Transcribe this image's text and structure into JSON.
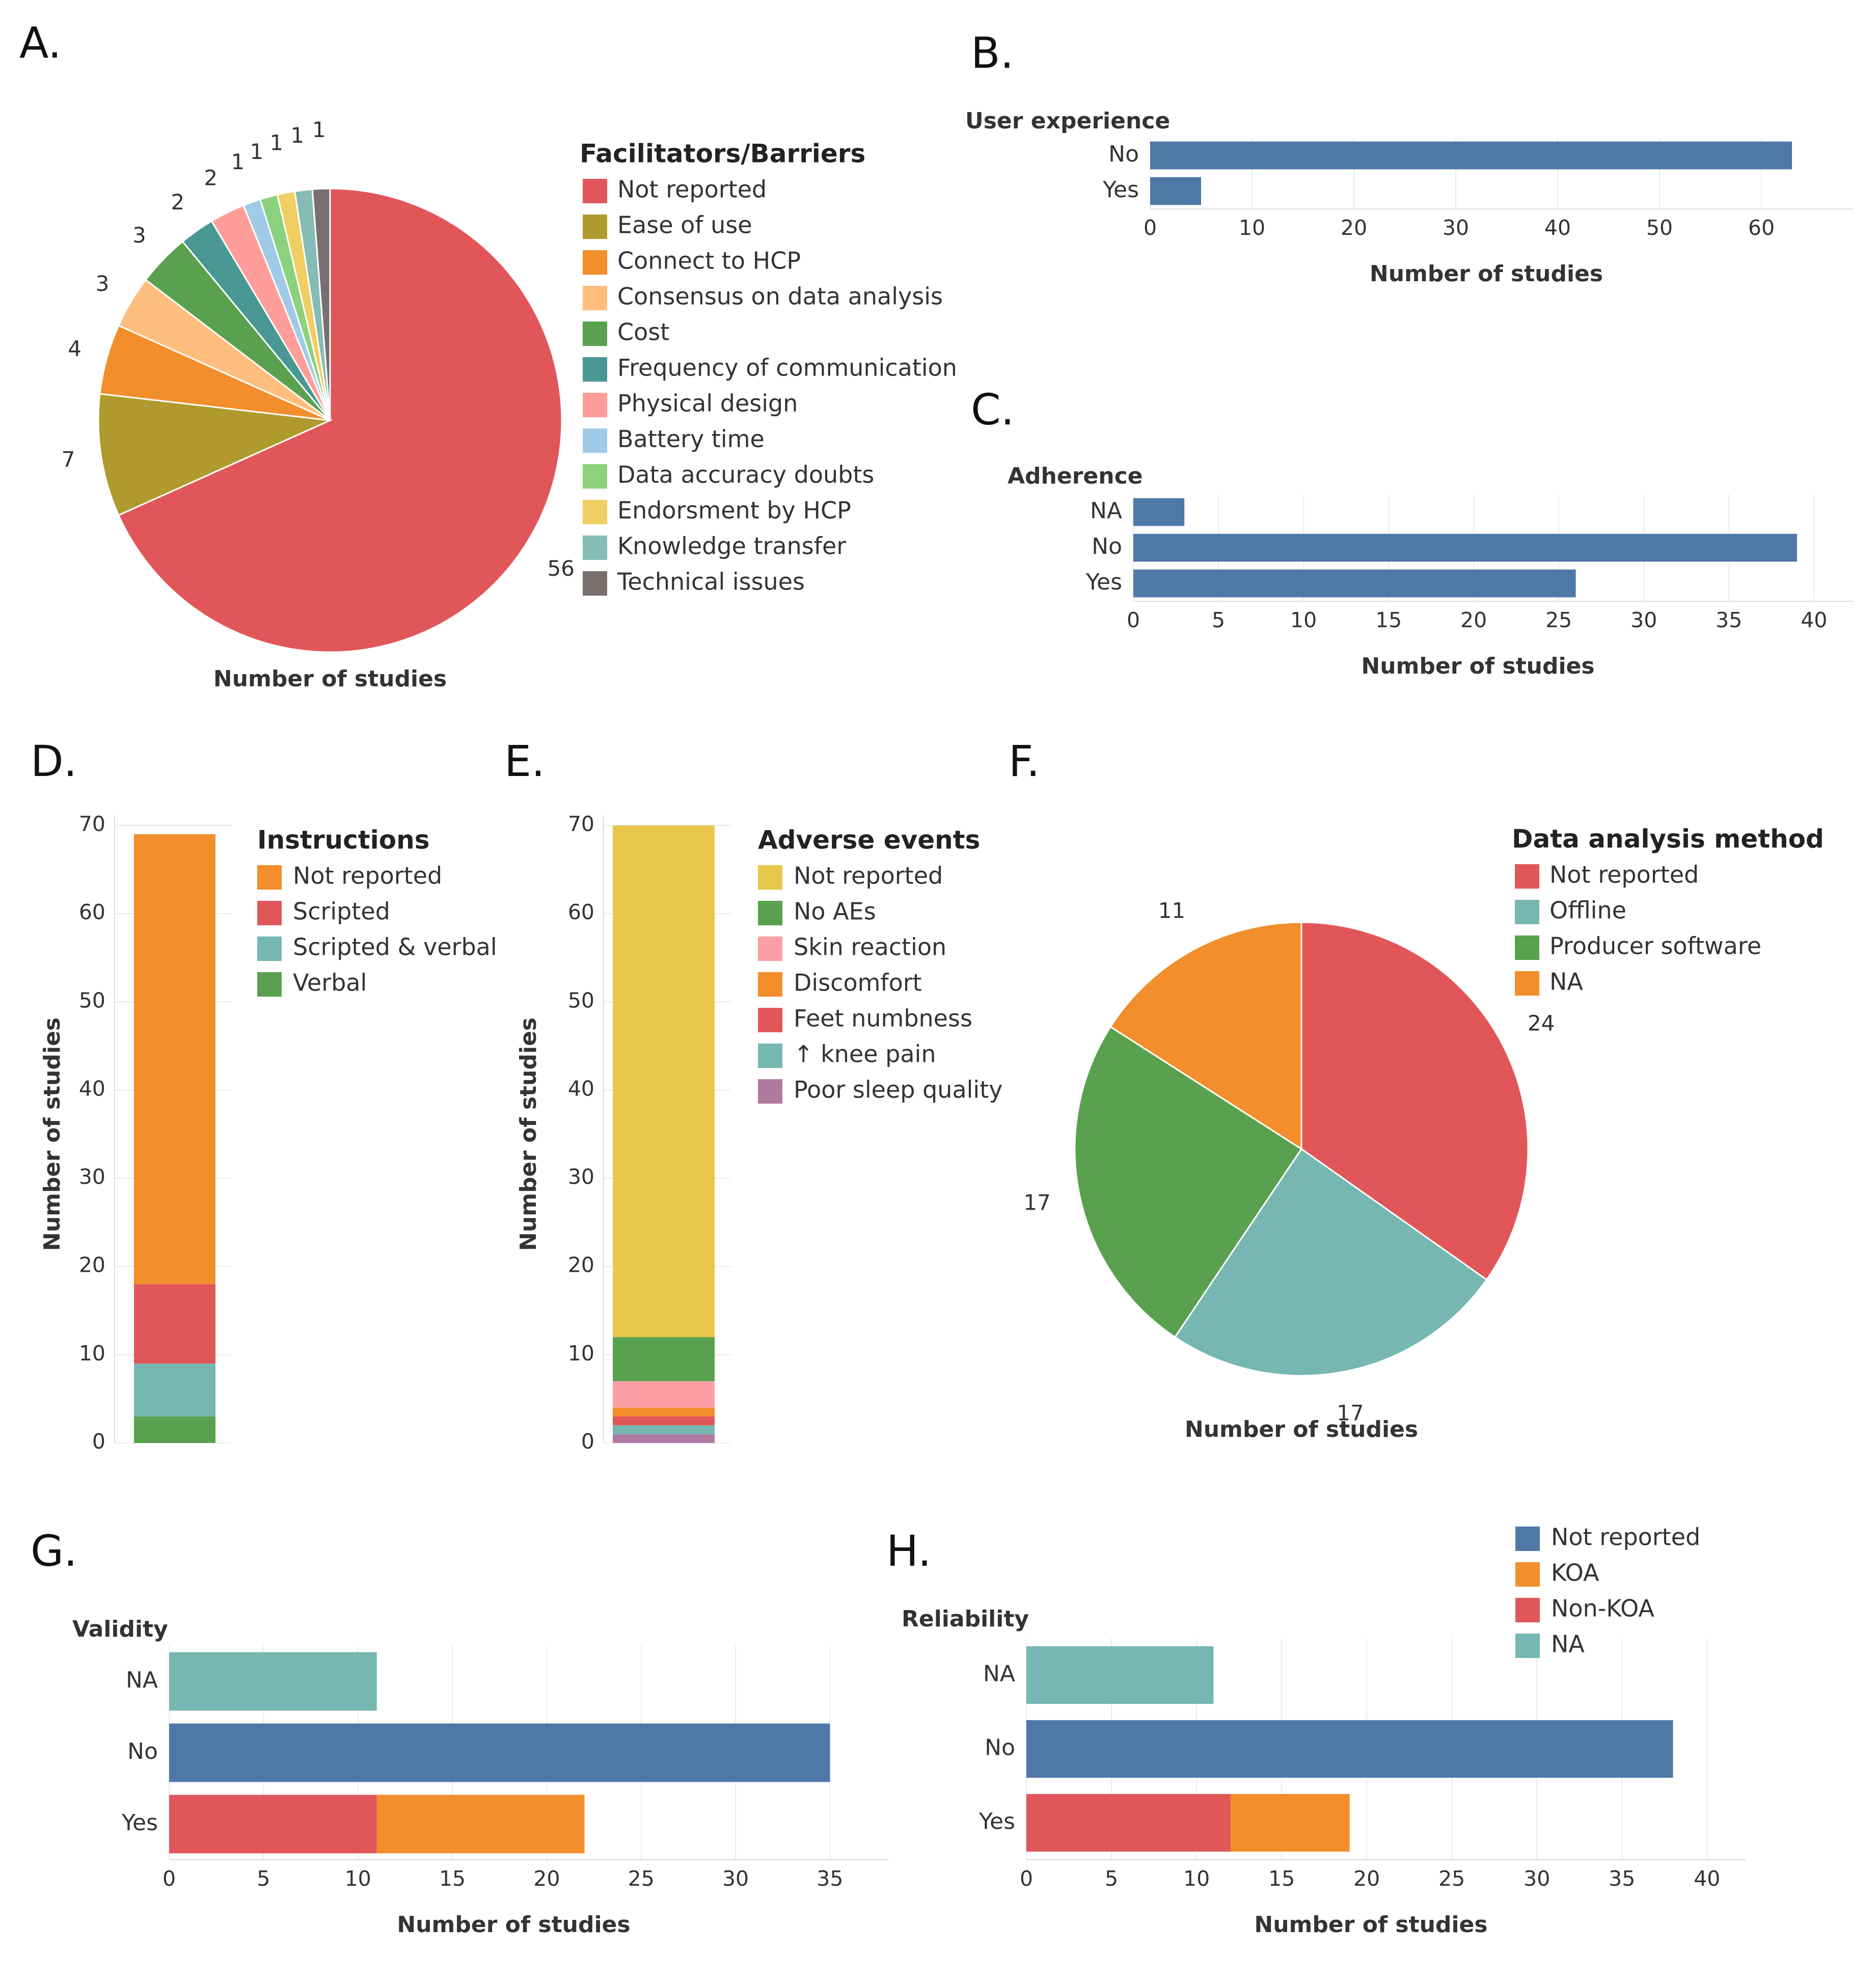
{
  "colors": {
    "red": "#e15759",
    "olive": "#b19a2d",
    "orange": "#f28e2b",
    "peach": "#ffbe7d",
    "green": "#59a14f",
    "teal": "#499894",
    "pink": "#ff9d9a",
    "lightblue": "#a0cbe8",
    "lightgreen": "#8cd17d",
    "yellow": "#f1ce63",
    "mint": "#86bcb6",
    "darkgray": "#79706e",
    "blue": "#4e79a7",
    "aqua": "#76b7b2",
    "gold": "#e8c74a",
    "rose": "#fc9fa6",
    "purple": "#b07aa1"
  },
  "chart_data": [
    {
      "panel": "A.",
      "type": "pie",
      "xlabel": "Number of studies",
      "legend_title": "Facilitators/Barriers",
      "categories": [
        "Not reported",
        "Ease of use",
        "Connect to HCP",
        "Consensus on data analysis",
        "Cost",
        "Frequency of communication",
        "Physical design",
        "Battery time",
        "Data accuracy doubts",
        "Endorsment by HCP",
        "Knowledge transfer",
        "Technical issues"
      ],
      "values": [
        56,
        7,
        4,
        3,
        3,
        2,
        2,
        1,
        1,
        1,
        1,
        1
      ],
      "slice_labels": [
        "56",
        "7",
        "4",
        "3",
        "3",
        "2",
        "2",
        "1",
        "1",
        "1",
        "1",
        "1"
      ],
      "colors": [
        "red",
        "olive",
        "orange",
        "peach",
        "green",
        "teal",
        "pink",
        "lightblue",
        "lightgreen",
        "yellow",
        "mint",
        "darkgray"
      ],
      "direction": "clockwise from top",
      "legend_position": "right"
    },
    {
      "panel": "B.",
      "type": "bar",
      "orientation": "horizontal",
      "header": "User experience",
      "xlabel": "Number of studies",
      "categories": [
        "No",
        "Yes"
      ],
      "series": [
        {
          "values": [
            63,
            5
          ],
          "color": "blue"
        }
      ],
      "xlim": [
        0,
        66
      ],
      "xticks": [
        0,
        10,
        20,
        30,
        40,
        50,
        60
      ]
    },
    {
      "panel": "C.",
      "type": "bar",
      "orientation": "horizontal",
      "header": "Adherence",
      "xlabel": "Number of studies",
      "categories": [
        "NA",
        "No",
        "Yes"
      ],
      "series": [
        {
          "values": [
            3,
            39,
            26
          ],
          "color": "blue"
        }
      ],
      "xlim": [
        0,
        40.5
      ],
      "xticks": [
        0,
        5,
        10,
        15,
        20,
        25,
        30,
        35,
        40
      ]
    },
    {
      "panel": "D.",
      "type": "bar",
      "orientation": "vertical",
      "stacked": true,
      "ylabel": "Number of studies",
      "legend_title": "Instructions",
      "ylim": [
        0,
        70
      ],
      "yticks": [
        0,
        10,
        20,
        30,
        40,
        50,
        60,
        70
      ],
      "series": [
        {
          "name": "Not reported",
          "value": 51,
          "color": "orange"
        },
        {
          "name": "Scripted",
          "value": 9,
          "color": "red"
        },
        {
          "name": "Scripted & verbal",
          "value": 6,
          "color": "aqua"
        },
        {
          "name": "Verbal",
          "value": 3,
          "color": "green"
        }
      ],
      "stack_order_top_to_bottom": [
        "Not reported",
        "Scripted",
        "Scripted & verbal",
        "Verbal"
      ]
    },
    {
      "panel": "E.",
      "type": "bar",
      "orientation": "vertical",
      "stacked": true,
      "ylabel": "Number of studies",
      "legend_title": "Adverse events",
      "ylim": [
        0,
        70
      ],
      "yticks": [
        0,
        10,
        20,
        30,
        40,
        50,
        60,
        70
      ],
      "series": [
        {
          "name": "Not reported",
          "value": 58,
          "color": "gold"
        },
        {
          "name": "No AEs",
          "value": 5,
          "color": "green"
        },
        {
          "name": "Skin reaction",
          "value": 3,
          "color": "rose"
        },
        {
          "name": "Discomfort",
          "value": 1,
          "color": "orange"
        },
        {
          "name": "Feet numbness",
          "value": 1,
          "color": "red"
        },
        {
          "name": "↑ knee pain",
          "value": 1,
          "color": "aqua"
        },
        {
          "name": "Poor sleep quality",
          "value": 1,
          "color": "purple"
        }
      ]
    },
    {
      "panel": "F.",
      "type": "pie",
      "xlabel": "Number of studies",
      "legend_title": "Data analysis method",
      "categories": [
        "Not reported",
        "Offline",
        "Producer software",
        "NA"
      ],
      "values": [
        24,
        17,
        17,
        11
      ],
      "slice_labels": [
        "24",
        "17",
        "17",
        "11"
      ],
      "colors": [
        "red",
        "aqua",
        "green",
        "orange"
      ],
      "direction": "clockwise from top",
      "legend_position": "top-right"
    },
    {
      "panel": "G.",
      "type": "bar",
      "orientation": "horizontal",
      "stacked": true,
      "header": "Validity",
      "xlabel": "Number of studies",
      "categories": [
        "NA",
        "No",
        "Yes"
      ],
      "series": [
        {
          "name": "Not reported",
          "values": [
            0,
            35,
            0
          ],
          "color": "blue"
        },
        {
          "name": "Non-KOA",
          "values": [
            0,
            0,
            11
          ],
          "color": "red"
        },
        {
          "name": "KOA",
          "values": [
            0,
            0,
            11
          ],
          "color": "orange"
        },
        {
          "name": "NA",
          "values": [
            11,
            0,
            0
          ],
          "color": "aqua"
        }
      ],
      "xlim": [
        0,
        36.5
      ],
      "xticks": [
        0,
        5,
        10,
        15,
        20,
        25,
        30,
        35
      ]
    },
    {
      "panel": "H.",
      "type": "bar",
      "orientation": "horizontal",
      "stacked": true,
      "header": "Reliability",
      "xlabel": "Number of studies",
      "legend_entries": [
        "Not reported",
        "KOA",
        "Non-KOA",
        "NA"
      ],
      "legend_colors": [
        "blue",
        "orange",
        "red",
        "aqua"
      ],
      "categories": [
        "NA",
        "No",
        "Yes"
      ],
      "series": [
        {
          "name": "Not reported",
          "values": [
            0,
            38,
            0
          ],
          "color": "blue"
        },
        {
          "name": "Non-KOA",
          "values": [
            0,
            0,
            12
          ],
          "color": "red"
        },
        {
          "name": "KOA",
          "values": [
            0,
            0,
            7
          ],
          "color": "orange"
        },
        {
          "name": "NA",
          "values": [
            11,
            0,
            0
          ],
          "color": "aqua"
        }
      ],
      "xlim": [
        0,
        40.5
      ],
      "xticks": [
        0,
        5,
        10,
        15,
        20,
        25,
        30,
        35,
        40
      ]
    }
  ]
}
